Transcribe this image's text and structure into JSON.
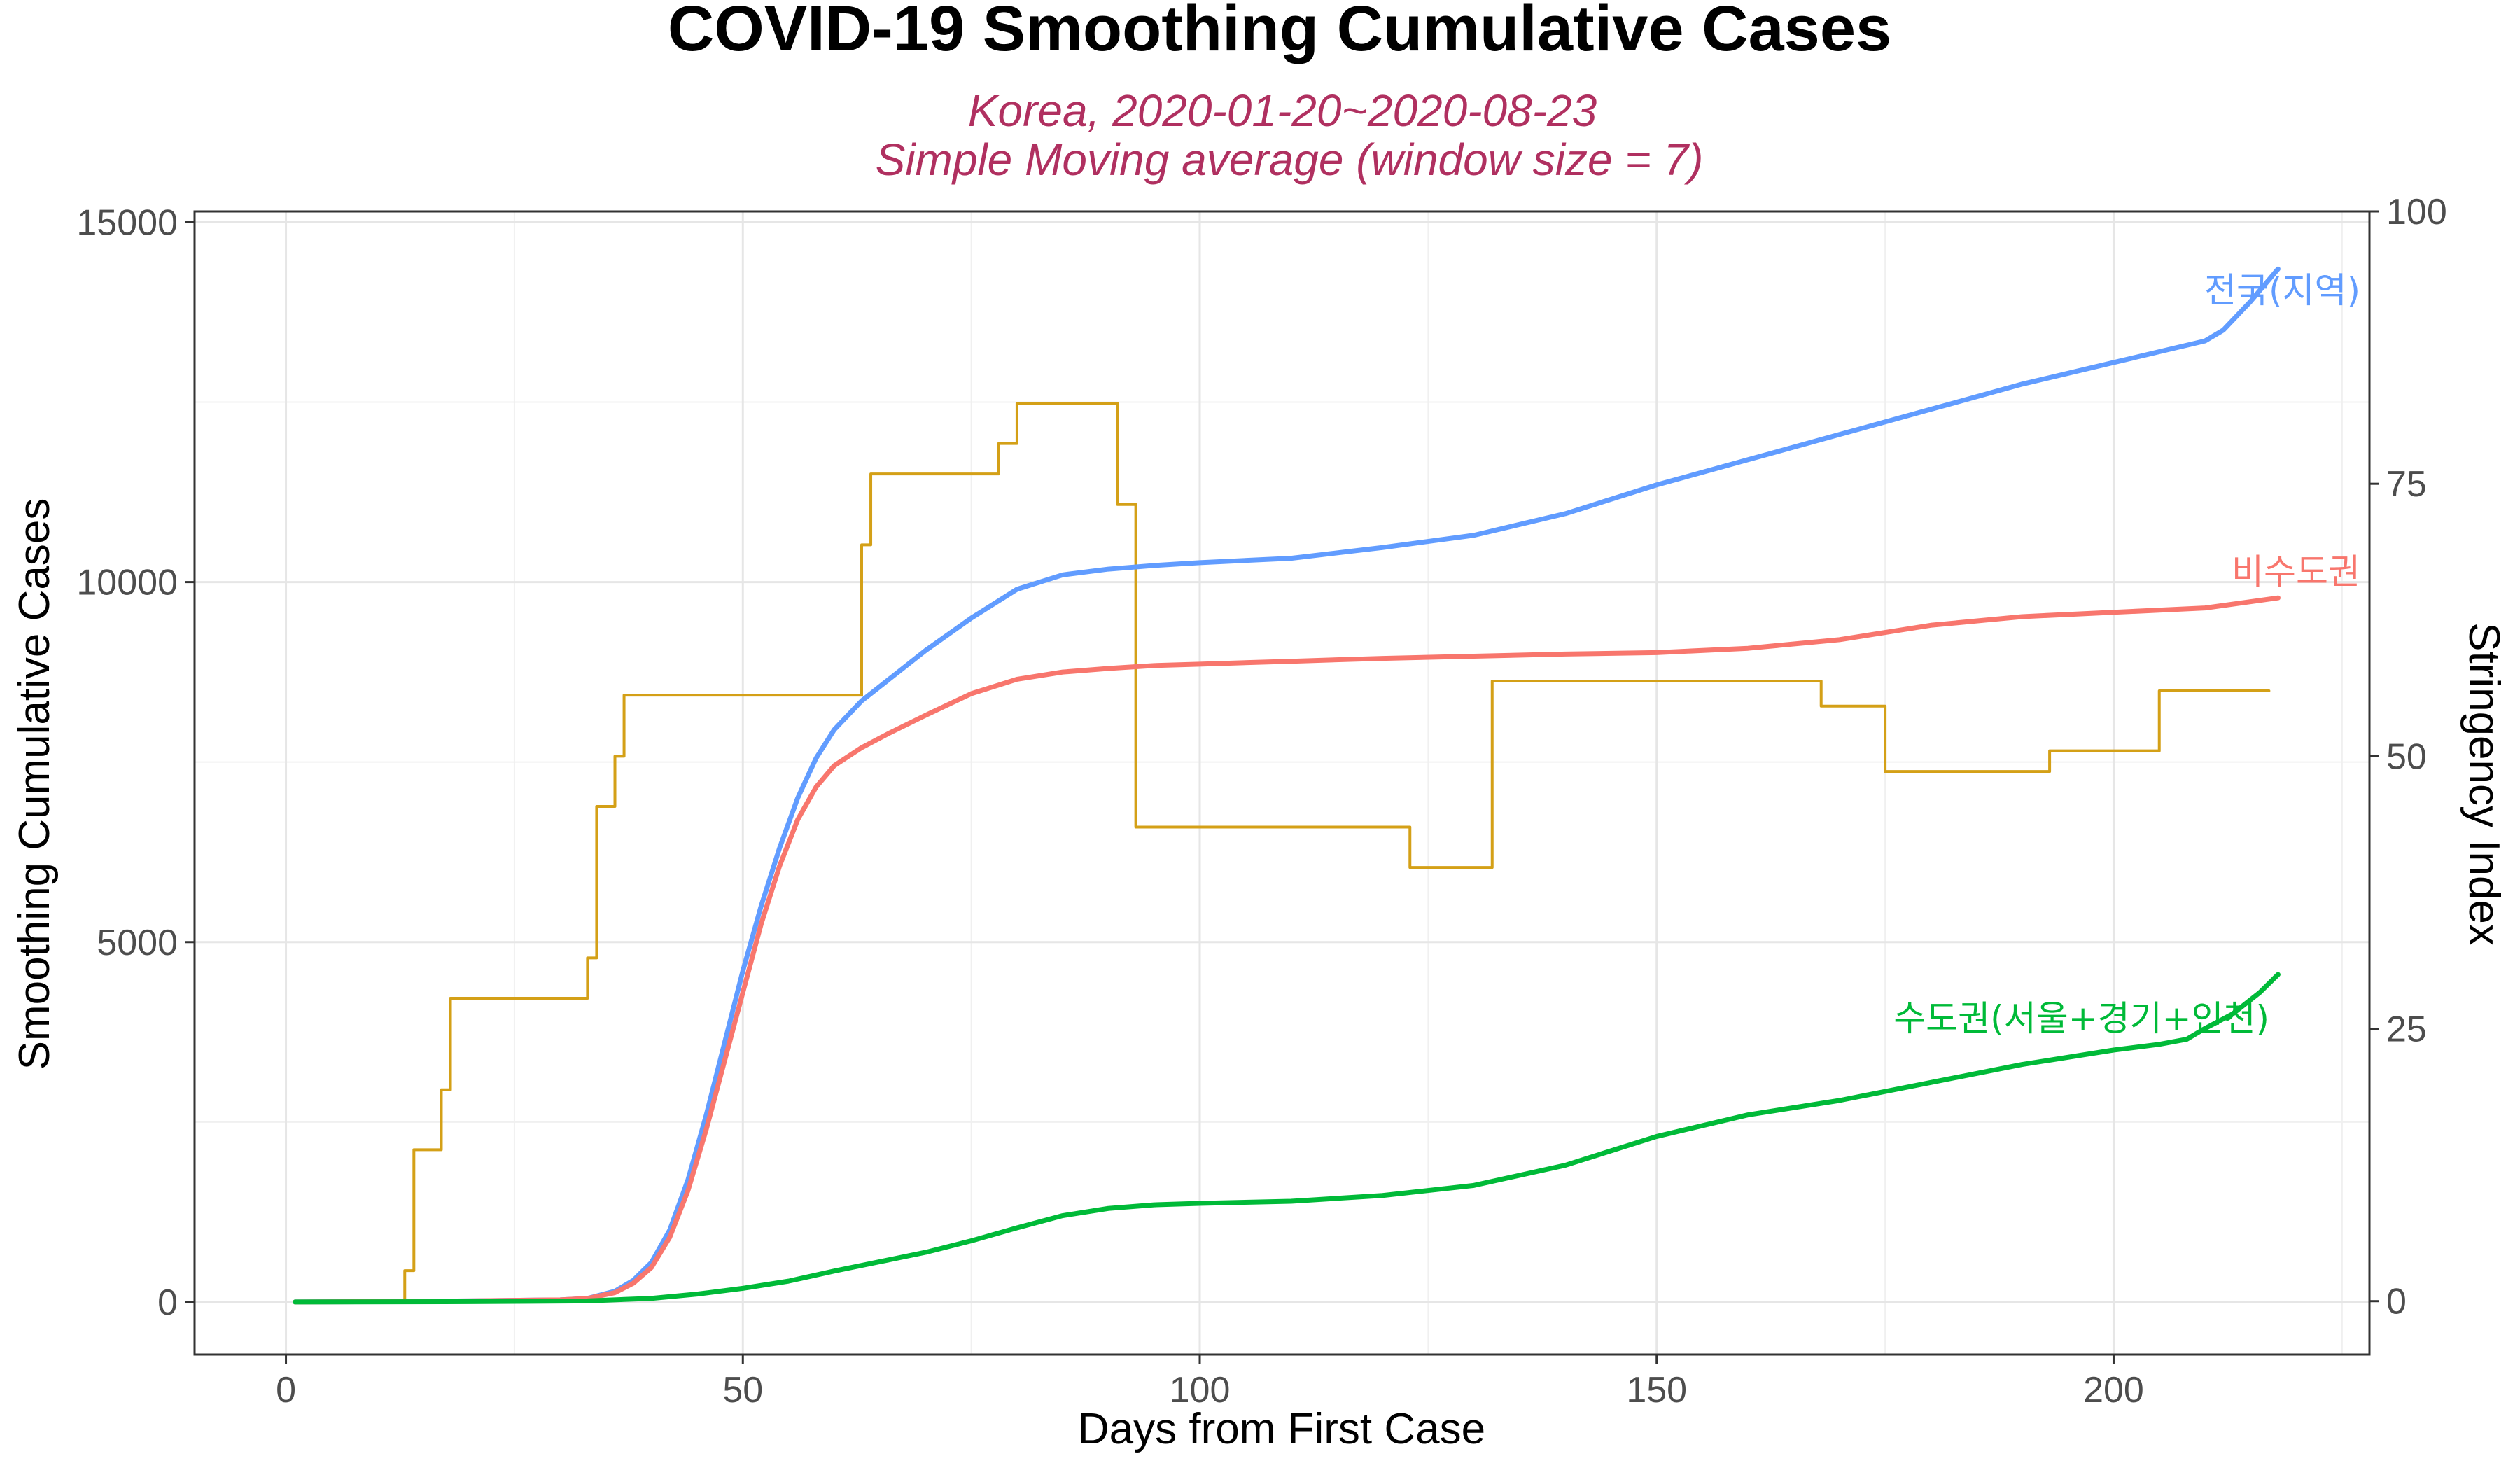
{
  "chart_data": {
    "type": "line",
    "title": "COVID-19 Smoothing Cumulative Cases",
    "subtitle": [
      "Korea, 2020-01-20~2020-08-23",
      "Simple Moving average (window size = 7)"
    ],
    "xlabel": "Days from First Case",
    "ylabel": "Smoothing Cumulative Cases",
    "y2label": "Stringency Index",
    "xlim": [
      -10,
      228
    ],
    "ylim": [
      -730,
      15150
    ],
    "y2lim": [
      -4.9,
      100
    ],
    "xticks": [
      0,
      50,
      100,
      150,
      200
    ],
    "yticks": [
      0,
      5000,
      10000,
      15000
    ],
    "y2ticks": [
      0,
      25,
      50,
      75,
      100
    ],
    "grid": true,
    "colors": {
      "subtitle": "#b03060",
      "nationwide": "#619cff",
      "non_capital": "#f8766d",
      "capital": "#00ba38",
      "stringency": "#d4a017"
    },
    "series": [
      {
        "name": "전국(지역)",
        "color": "#619cff",
        "x": [
          1,
          10,
          20,
          30,
          33,
          36,
          38,
          40,
          42,
          44,
          46,
          48,
          50,
          52,
          54,
          56,
          58,
          60,
          63,
          66,
          70,
          75,
          80,
          85,
          90,
          95,
          100,
          110,
          120,
          130,
          140,
          150,
          160,
          170,
          180,
          190,
          200,
          205,
          210,
          212,
          215,
          218
        ],
        "y": [
          0,
          5,
          15,
          30,
          50,
          150,
          300,
          550,
          1000,
          1700,
          2600,
          3600,
          4600,
          5500,
          6300,
          7000,
          7550,
          7950,
          8350,
          8650,
          9050,
          9500,
          9900,
          10100,
          10180,
          10230,
          10270,
          10330,
          10480,
          10650,
          10950,
          11350,
          11700,
          12050,
          12400,
          12750,
          13050,
          13200,
          13350,
          13500,
          13900,
          14350
        ]
      },
      {
        "name": "비수도권",
        "color": "#f8766d",
        "x": [
          1,
          10,
          20,
          30,
          33,
          36,
          38,
          40,
          42,
          44,
          46,
          48,
          50,
          52,
          54,
          56,
          58,
          60,
          63,
          66,
          70,
          75,
          80,
          85,
          90,
          95,
          100,
          110,
          120,
          130,
          140,
          150,
          160,
          170,
          180,
          190,
          200,
          210,
          218
        ],
        "y": [
          0,
          5,
          15,
          30,
          50,
          130,
          260,
          480,
          900,
          1550,
          2400,
          3350,
          4300,
          5250,
          6050,
          6700,
          7150,
          7450,
          7700,
          7900,
          8150,
          8450,
          8650,
          8750,
          8800,
          8840,
          8860,
          8900,
          8940,
          8970,
          9000,
          9020,
          9080,
          9200,
          9400,
          9520,
          9580,
          9640,
          9780
        ]
      },
      {
        "name": "수도권(서울+경기+인천)",
        "color": "#00ba38",
        "x": [
          1,
          20,
          33,
          40,
          45,
          50,
          55,
          60,
          65,
          70,
          75,
          80,
          85,
          90,
          95,
          100,
          110,
          120,
          130,
          140,
          150,
          160,
          170,
          180,
          190,
          200,
          205,
          208,
          210,
          213,
          216,
          218
        ],
        "y": [
          0,
          5,
          15,
          50,
          110,
          190,
          290,
          430,
          560,
          690,
          850,
          1030,
          1200,
          1300,
          1350,
          1370,
          1400,
          1480,
          1620,
          1900,
          2300,
          2600,
          2800,
          3050,
          3300,
          3500,
          3580,
          3650,
          3800,
          4000,
          4300,
          4550
        ]
      },
      {
        "name": "Stringency Index",
        "axis": "y2",
        "step": true,
        "color": "#d4a017",
        "x": [
          1,
          12,
          13,
          14,
          16,
          17,
          18,
          33,
          34,
          35,
          36,
          37,
          38,
          62,
          63,
          64,
          65,
          66,
          77,
          78,
          79,
          80,
          90,
          91,
          92,
          93,
          122,
          123,
          131,
          132,
          167,
          168,
          174,
          175,
          192,
          193,
          204,
          205,
          217
        ],
        "y": [
          0,
          0,
          2.8,
          13.9,
          13.9,
          19.4,
          27.8,
          31.5,
          45.4,
          45.4,
          50.0,
          55.6,
          55.6,
          55.6,
          69.4,
          75.9,
          75.9,
          75.9,
          75.9,
          78.7,
          78.7,
          82.4,
          82.4,
          73.1,
          73.1,
          43.5,
          43.5,
          39.8,
          39.8,
          56.9,
          56.9,
          54.6,
          54.6,
          48.6,
          48.6,
          50.5,
          50.5,
          56.0,
          56.0
        ]
      }
    ]
  }
}
